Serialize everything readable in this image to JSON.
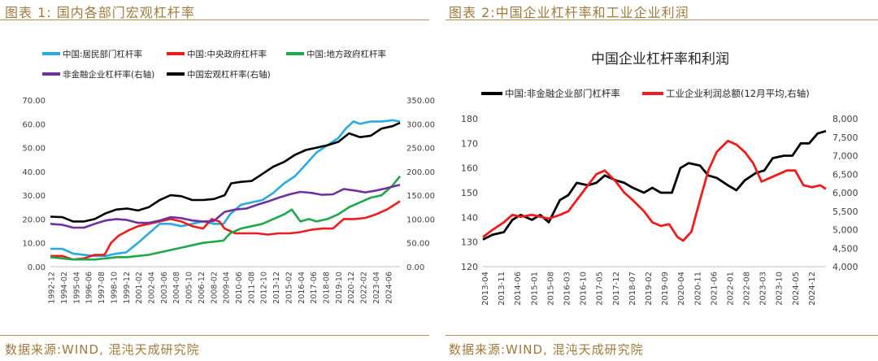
{
  "left_panel": {
    "title": "图表 1:  国内各部门宏观杠杆率",
    "source": "数据来源:WIND, 混沌天成研究院"
  },
  "right_panel": {
    "title": "图表 2:中国企业杠杆率和工业企业利润",
    "source": "数据来源:WIND, 混沌天成研究院"
  },
  "colors": {
    "cyan": "#2aaae2",
    "red": "#ee1c1c",
    "green": "#1ea84a",
    "purple": "#7030a0",
    "black": "#000000",
    "frame_text": "#a07a3a"
  },
  "chart_data": [
    {
      "type": "line",
      "title": "",
      "xlabel": "",
      "ylabel": "",
      "x_ticks": [
        "1992-12",
        "1994-02",
        "1995-04",
        "1996-06",
        "1997-08",
        "1998-10",
        "1999-12",
        "2001-02",
        "2002-04",
        "2003-06",
        "2004-08",
        "2005-10",
        "2006-12",
        "2008-02",
        "2009-04",
        "2010-06",
        "2011-08",
        "2012-10",
        "2013-12",
        "2015-02",
        "2016-04",
        "2017-06",
        "2018-08",
        "2019-10",
        "2020-12",
        "2022-02",
        "2023-04",
        "2024-06"
      ],
      "y_left_ticks": [
        "0.00",
        "10.00",
        "20.00",
        "30.00",
        "40.00",
        "50.00",
        "60.00",
        "70.00"
      ],
      "y_right_ticks": [
        "0.00",
        "50.00",
        "100.00",
        "150.00",
        "200.00",
        "250.00",
        "300.00",
        "350.00"
      ],
      "ylim_left": [
        0,
        70
      ],
      "ylim_right": [
        0,
        350
      ],
      "legend": "top",
      "x_range": [
        1992.9,
        2025.2
      ],
      "series": [
        {
          "name": "中国:居民部门杠杆率",
          "axis": "left",
          "color": "#2aaae2",
          "x": [
            1992.9,
            1994.0,
            1995.0,
            1996.0,
            1997.0,
            1998.0,
            1999.0,
            1999.9,
            2001.0,
            2002.0,
            2003.0,
            2004.0,
            2005.0,
            2006.0,
            2007.0,
            2008.0,
            2008.9,
            2009.5,
            2010.5,
            2011.5,
            2012.5,
            2013.5,
            2014.5,
            2015.5,
            2016.5,
            2017.5,
            2018.5,
            2019.5,
            2020.2,
            2020.9,
            2021.5,
            2022.5,
            2023.5,
            2024.5,
            2025.2
          ],
          "y": [
            7.5,
            7.5,
            5.5,
            5,
            4.5,
            4.5,
            5.5,
            6,
            10,
            14,
            18,
            18,
            17,
            18,
            19,
            18,
            18,
            22,
            26,
            27,
            28,
            31,
            35,
            38,
            43,
            48,
            51,
            54,
            58,
            61,
            60,
            61,
            61,
            61.5,
            61
          ]
        },
        {
          "name": "中国:中央政府杠杆率",
          "axis": "left",
          "color": "#ee1c1c",
          "x": [
            1992.9,
            1994.0,
            1995.0,
            1996.0,
            1997.0,
            1997.9,
            1998.5,
            1999.2,
            2000.0,
            2001.0,
            2002.0,
            2003.0,
            2004.0,
            2005.0,
            2006.0,
            2007.0,
            2007.8,
            2008.5,
            2009.0,
            2010.0,
            2011.0,
            2012.0,
            2013.0,
            2014.0,
            2015.0,
            2016.0,
            2017.0,
            2018.0,
            2019.0,
            2020.0,
            2021.0,
            2022.0,
            2023.0,
            2024.0,
            2025.2
          ],
          "y": [
            4.5,
            4.5,
            3,
            3.5,
            5,
            5,
            10,
            13,
            15,
            17,
            18,
            19,
            20,
            19,
            17,
            16,
            20,
            19,
            16,
            14,
            14,
            14,
            13.5,
            14,
            14,
            14.5,
            15.5,
            16,
            16,
            20,
            20,
            20.5,
            22,
            24,
            27.5
          ]
        },
        {
          "name": "中国:地方政府杠杆率",
          "axis": "left",
          "color": "#1ea84a",
          "x": [
            1992.9,
            1994.0,
            1995.0,
            1996.0,
            1997.0,
            1998.0,
            1999.0,
            2000.0,
            2001.0,
            2002.0,
            2003.0,
            2004.0,
            2005.0,
            2006.0,
            2007.0,
            2008.0,
            2008.9,
            2009.5,
            2010.5,
            2011.5,
            2012.5,
            2013.5,
            2014.5,
            2015.2,
            2016.0,
            2016.8,
            2017.5,
            2018.5,
            2019.5,
            2020.5,
            2021.5,
            2022.5,
            2023.5,
            2024.5,
            2025.2
          ],
          "y": [
            4,
            3.5,
            3,
            3,
            3,
            3.5,
            4,
            4,
            4.5,
            5,
            6,
            7,
            8,
            9,
            10,
            10.5,
            11,
            14,
            16,
            17,
            18,
            20,
            22,
            24,
            19,
            20,
            19,
            20,
            22,
            25,
            27,
            29,
            30,
            34,
            38
          ]
        },
        {
          "name": "非金融企业杠杆率(右轴)",
          "axis": "right",
          "color": "#7030a0",
          "x": [
            1992.9,
            1994.0,
            1995.0,
            1996.0,
            1997.0,
            1998.0,
            1999.0,
            2000.0,
            2001.0,
            2002.0,
            2003.0,
            2004.0,
            2005.0,
            2006.0,
            2007.0,
            2008.0,
            2009.0,
            2010.0,
            2011.0,
            2012.0,
            2013.0,
            2014.0,
            2015.0,
            2016.0,
            2017.0,
            2018.0,
            2019.0,
            2020.0,
            2021.0,
            2022.0,
            2023.0,
            2024.0,
            2025.2
          ],
          "y": [
            90,
            88,
            82,
            82,
            90,
            97,
            100,
            98,
            92,
            92,
            97,
            104,
            102,
            97,
            95,
            96,
            115,
            120,
            122,
            130,
            137,
            145,
            152,
            157,
            155,
            151,
            152,
            163,
            160,
            156,
            160,
            165,
            172
          ]
        },
        {
          "name": "中国宏观杠杆率(右轴)",
          "axis": "right",
          "color": "#000000",
          "x": [
            1992.9,
            1994.0,
            1995.0,
            1996.0,
            1997.0,
            1998.0,
            1999.0,
            2000.0,
            2001.0,
            2002.0,
            2003.0,
            2004.0,
            2005.0,
            2006.0,
            2007.0,
            2008.0,
            2009.0,
            2009.6,
            2010.5,
            2011.5,
            2012.5,
            2013.5,
            2014.5,
            2015.5,
            2016.5,
            2017.5,
            2018.5,
            2019.5,
            2020.5,
            2021.5,
            2022.5,
            2023.5,
            2024.5,
            2025.2
          ],
          "y": [
            105,
            104,
            95,
            95,
            100,
            112,
            120,
            122,
            118,
            125,
            140,
            150,
            148,
            140,
            140,
            142,
            150,
            175,
            178,
            180,
            195,
            210,
            220,
            235,
            245,
            250,
            255,
            262,
            280,
            272,
            275,
            290,
            295,
            302
          ]
        }
      ]
    },
    {
      "type": "line",
      "title": "中国企业杠杆率和利润",
      "xlabel": "",
      "ylabel": "",
      "x_ticks": [
        "2013-04",
        "2013-11",
        "2014-06",
        "2015-01",
        "2015-08",
        "2016-03",
        "2016-10",
        "2017-05",
        "2017-12",
        "2018-07",
        "2019-02",
        "2019-09",
        "2020-04",
        "2020-11",
        "2021-06",
        "2022-01",
        "2022-08",
        "2023-03",
        "2023-10",
        "2024-05",
        "2024-12"
      ],
      "y_left_ticks": [
        "120",
        "130",
        "140",
        "150",
        "160",
        "170",
        "180"
      ],
      "y_right_ticks": [
        "4,000",
        "4,500",
        "5,000",
        "5,500",
        "6,000",
        "6,500",
        "7,000",
        "7,500",
        "8,000"
      ],
      "ylim_left": [
        120,
        180
      ],
      "ylim_right": [
        4000,
        8000
      ],
      "legend": "top",
      "x_range": [
        2013.25,
        2025.5
      ],
      "series": [
        {
          "name": "中国:非金融企业部门杠杆率",
          "axis": "left",
          "color": "#000000",
          "x": [
            2013.25,
            2013.6,
            2014.0,
            2014.3,
            2014.6,
            2015.0,
            2015.3,
            2015.6,
            2016.0,
            2016.3,
            2016.6,
            2017.0,
            2017.3,
            2017.6,
            2018.0,
            2018.3,
            2018.6,
            2019.0,
            2019.3,
            2019.6,
            2020.0,
            2020.3,
            2020.6,
            2021.0,
            2021.3,
            2021.6,
            2022.0,
            2022.3,
            2022.6,
            2023.0,
            2023.3,
            2023.6,
            2024.0,
            2024.3,
            2024.6,
            2024.9,
            2025.2,
            2025.5
          ],
          "y": [
            131,
            133,
            134,
            139,
            141,
            139,
            141,
            138,
            147,
            149,
            154,
            153,
            154,
            157,
            155,
            154,
            152,
            150,
            152,
            150,
            150,
            160,
            162,
            161,
            157,
            156,
            153,
            151,
            155,
            158,
            159,
            164,
            165,
            165,
            170,
            170,
            174,
            175
          ]
        },
        {
          "name": "工业企业利润总额(12月平均,右轴)",
          "axis": "right",
          "color": "#ee1c1c",
          "x": [
            2013.25,
            2013.6,
            2014.0,
            2014.3,
            2014.6,
            2015.0,
            2015.3,
            2015.6,
            2016.0,
            2016.3,
            2016.6,
            2017.0,
            2017.3,
            2017.6,
            2018.0,
            2018.3,
            2018.6,
            2019.0,
            2019.3,
            2019.6,
            2019.9,
            2020.2,
            2020.4,
            2020.7,
            2021.0,
            2021.3,
            2021.6,
            2022.0,
            2022.3,
            2022.6,
            2022.9,
            2023.2,
            2023.5,
            2023.8,
            2024.1,
            2024.4,
            2024.7,
            2025.0,
            2025.3,
            2025.5
          ],
          "y": [
            4800,
            5000,
            5200,
            5400,
            5350,
            5400,
            5350,
            5300,
            5400,
            5500,
            5800,
            6200,
            6500,
            6600,
            6300,
            6000,
            5800,
            5500,
            5200,
            5100,
            5150,
            4800,
            4700,
            4950,
            5800,
            6600,
            7100,
            7400,
            7300,
            7100,
            6800,
            6300,
            6400,
            6500,
            6600,
            6600,
            6200,
            6150,
            6200,
            6100
          ]
        }
      ]
    }
  ]
}
